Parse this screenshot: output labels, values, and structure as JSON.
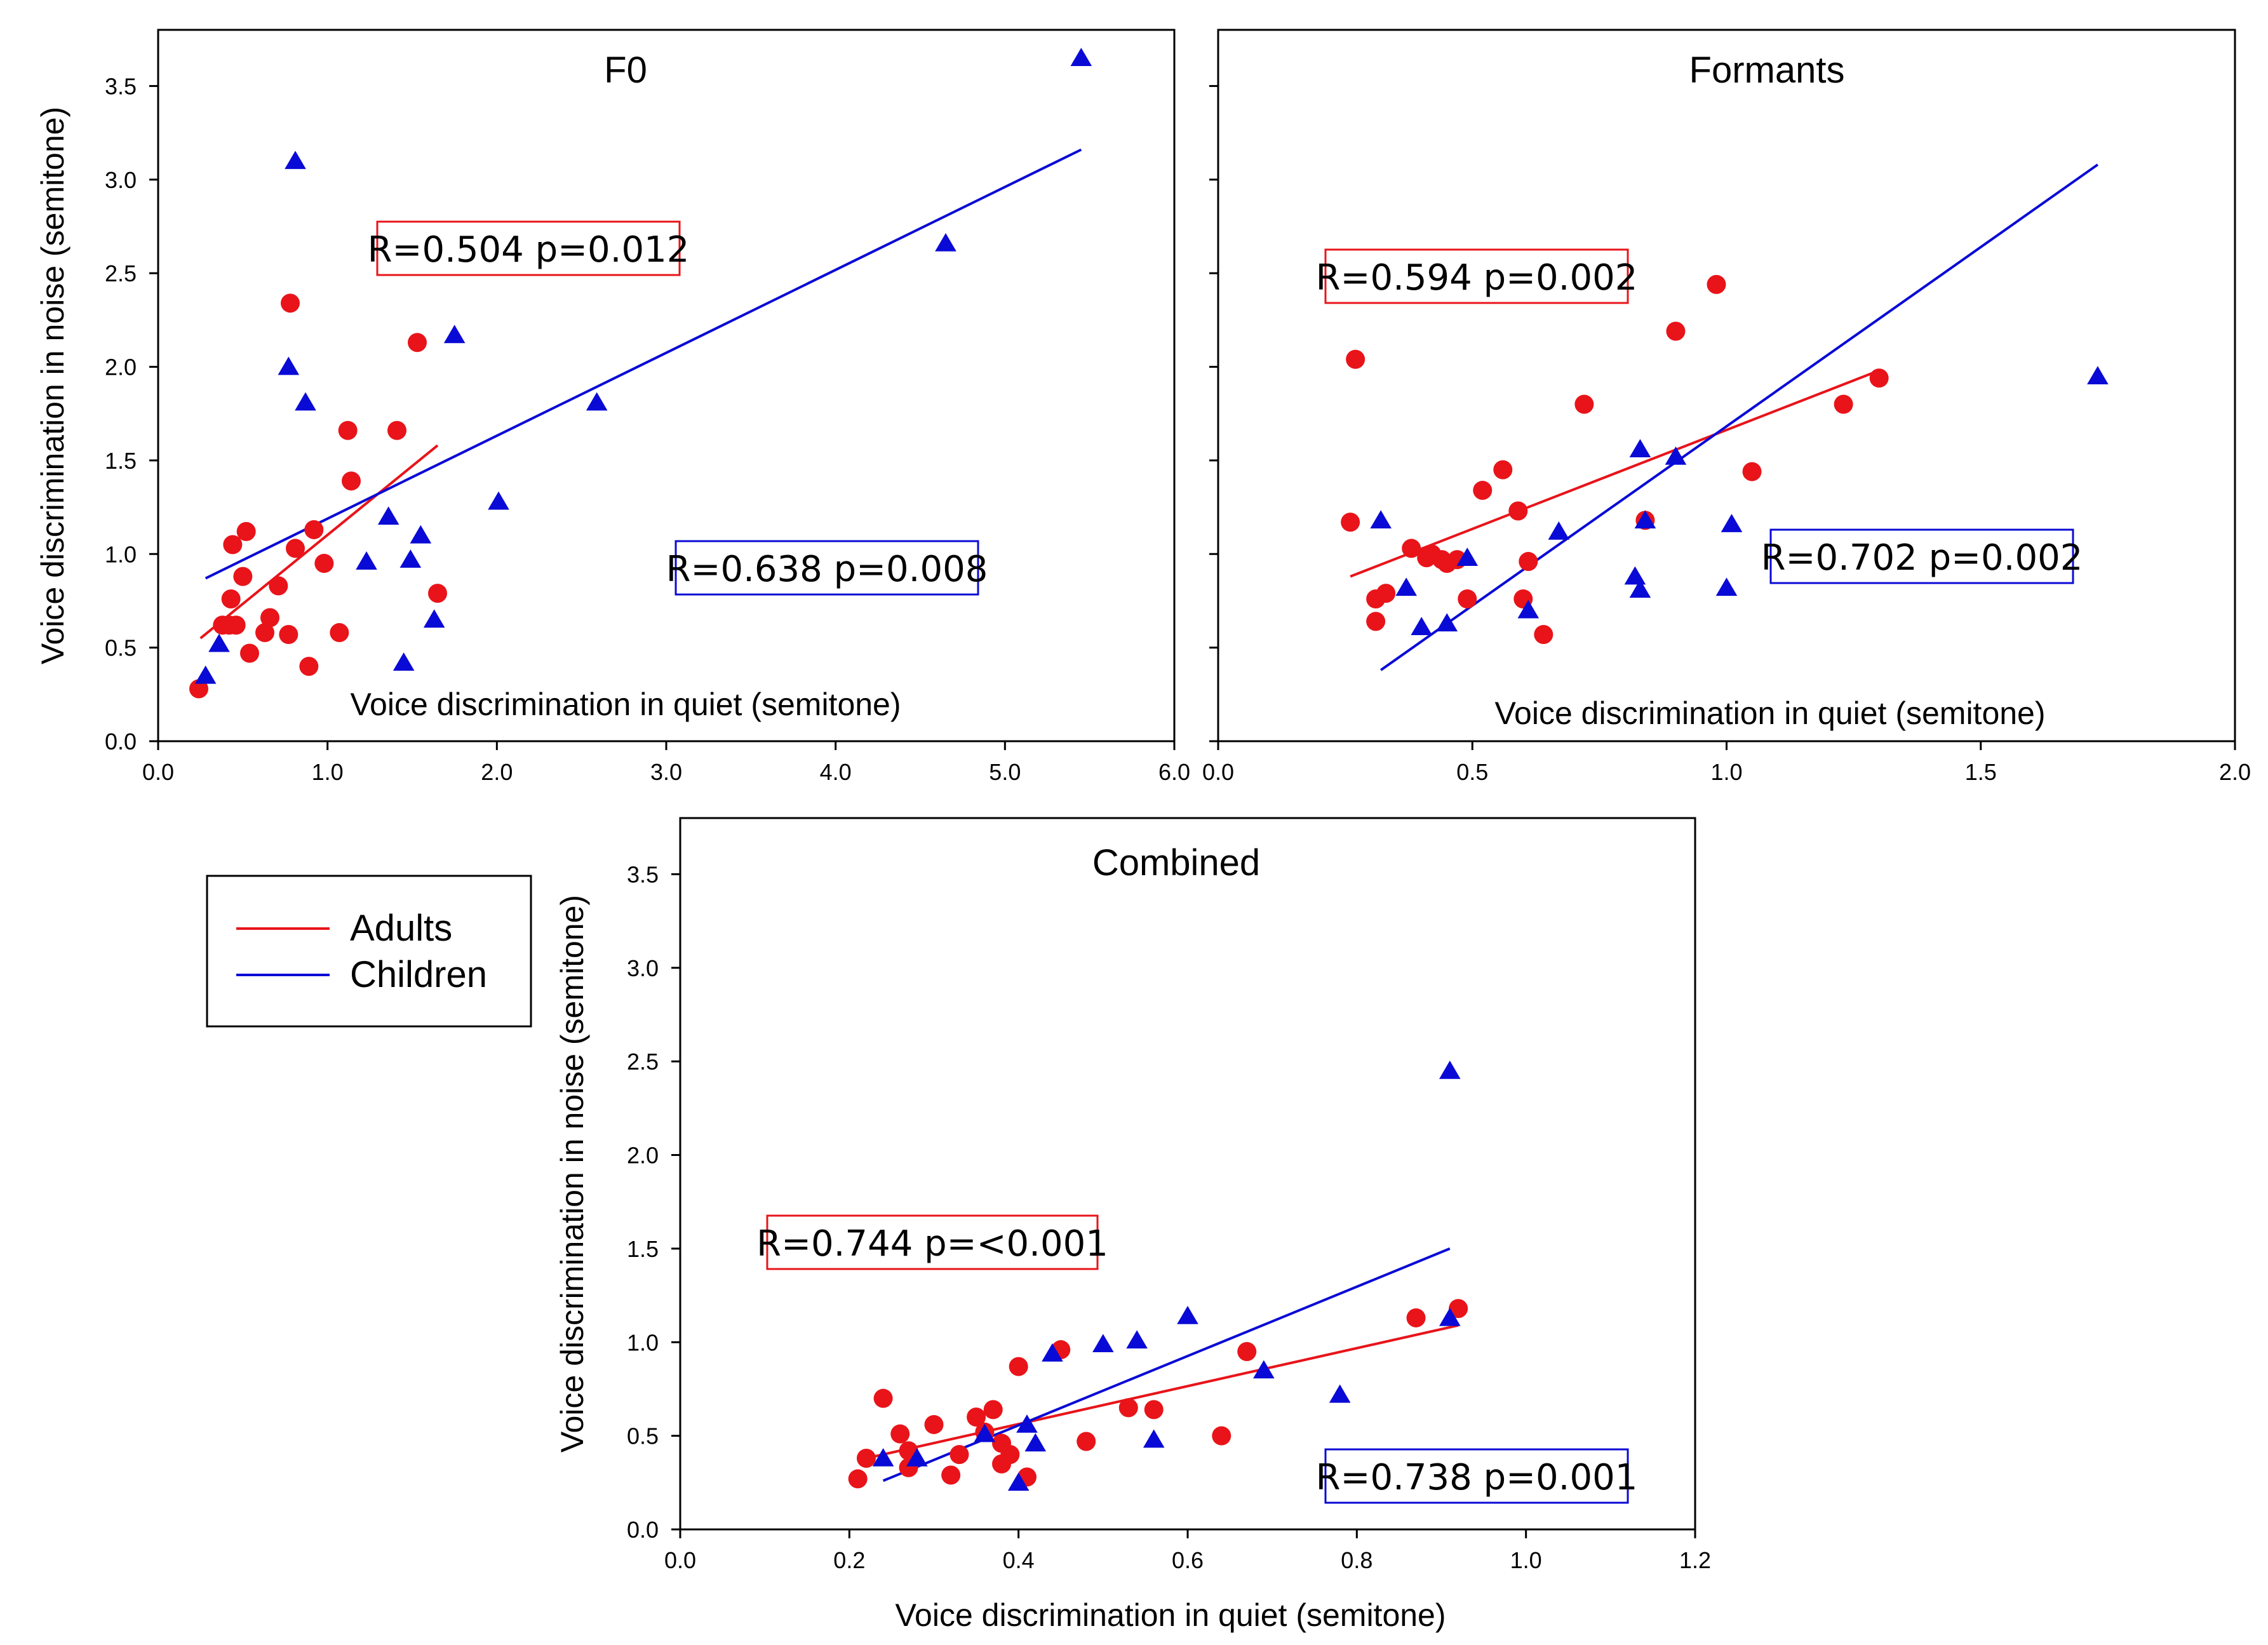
{
  "colors": {
    "adults": "#e8141a",
    "children": "#0a0ad6",
    "frame": "#000000"
  },
  "legend": {
    "adults_label": "Adults",
    "children_label": "Children"
  },
  "chart_data": [
    {
      "type": "scatter",
      "title": "F0",
      "xlabel": "Voice discrimination in quiet (semitone)",
      "ylabel": "Voice discrimination in noise (semitone)",
      "xlim": [
        0,
        6
      ],
      "ylim": [
        0,
        3.8
      ],
      "xticks": [
        "0.0",
        "1.0",
        "2.0",
        "3.0",
        "4.0",
        "5.0",
        "6.0"
      ],
      "yticks": [
        "0.0",
        "0.5",
        "1.0",
        "1.5",
        "2.0",
        "2.5",
        "3.0",
        "3.5"
      ],
      "stats": {
        "adults": "R=0.504 p=0.012",
        "children": "R=0.638 p=0.008"
      },
      "series": [
        {
          "name": "Adults",
          "marker": "circle",
          "x": [
            0.24,
            0.38,
            0.42,
            0.43,
            0.44,
            0.46,
            0.5,
            0.52,
            0.54,
            0.63,
            0.66,
            0.71,
            0.77,
            0.78,
            0.81,
            0.89,
            0.92,
            0.98,
            1.07,
            1.12,
            1.14,
            1.41,
            1.53,
            1.65
          ],
          "y": [
            0.28,
            0.62,
            0.62,
            0.76,
            1.05,
            0.62,
            0.88,
            1.12,
            0.47,
            0.58,
            0.66,
            0.83,
            0.57,
            2.34,
            1.03,
            0.4,
            1.13,
            0.95,
            0.58,
            1.66,
            1.39,
            1.66,
            2.13,
            0.79
          ],
          "fit_x": [
            0.25,
            1.65
          ],
          "fit_y": [
            0.55,
            1.58
          ]
        },
        {
          "name": "Children",
          "marker": "triangle",
          "x": [
            0.28,
            0.36,
            0.77,
            0.81,
            0.87,
            1.23,
            1.36,
            1.45,
            1.49,
            1.55,
            1.63,
            1.75,
            2.01,
            2.59,
            4.65,
            5.45
          ],
          "y": [
            0.35,
            0.52,
            2.0,
            3.1,
            1.81,
            0.96,
            1.2,
            0.42,
            0.97,
            1.1,
            0.65,
            2.17,
            1.28,
            1.81,
            2.66,
            3.65
          ],
          "fit_x": [
            0.28,
            5.45
          ],
          "fit_y": [
            0.87,
            3.16
          ]
        }
      ]
    },
    {
      "type": "scatter",
      "title": "Formants",
      "xlabel": "Voice discrimination in quiet (semitone)",
      "ylabel": "",
      "xlim": [
        0,
        2
      ],
      "ylim": [
        0,
        3.8
      ],
      "xticks": [
        "0.0",
        "0.5",
        "1.0",
        "1.5",
        "2.0"
      ],
      "yticks": [],
      "stats": {
        "adults": "R=0.594 p=0.002",
        "children": "R=0.702 p=0.002"
      },
      "series": [
        {
          "name": "Adults",
          "marker": "circle",
          "x": [
            0.26,
            0.27,
            0.31,
            0.31,
            0.33,
            0.38,
            0.41,
            0.42,
            0.44,
            0.45,
            0.47,
            0.49,
            0.52,
            0.56,
            0.59,
            0.6,
            0.61,
            0.64,
            0.72,
            0.84,
            0.9,
            0.98,
            1.05,
            1.23,
            1.3
          ],
          "y": [
            1.17,
            2.04,
            0.76,
            0.64,
            0.79,
            1.03,
            0.98,
            1.0,
            0.97,
            0.95,
            0.97,
            0.76,
            1.34,
            1.45,
            1.23,
            0.76,
            0.96,
            0.57,
            1.8,
            1.18,
            2.19,
            2.44,
            1.44,
            1.8,
            1.94
          ],
          "fit_x": [
            0.26,
            1.3
          ],
          "fit_y": [
            0.88,
            1.98
          ]
        },
        {
          "name": "Children",
          "marker": "triangle",
          "x": [
            0.32,
            0.37,
            0.4,
            0.45,
            0.49,
            0.61,
            0.67,
            0.82,
            0.83,
            0.83,
            0.84,
            0.9,
            1.0,
            1.01,
            1.73
          ],
          "y": [
            1.18,
            0.82,
            0.61,
            0.63,
            0.98,
            0.7,
            1.12,
            0.88,
            0.81,
            1.56,
            1.18,
            1.52,
            0.82,
            1.16,
            1.95
          ],
          "fit_x": [
            0.32,
            1.73
          ],
          "fit_y": [
            0.38,
            3.08
          ]
        }
      ]
    },
    {
      "type": "scatter",
      "title": "Combined",
      "xlabel": "Voice discrimination in quiet (semitone)",
      "ylabel": "Voice discrimination in noise (semitone)",
      "xlim": [
        0,
        1.2
      ],
      "ylim": [
        0,
        3.8
      ],
      "xticks": [
        "0.0",
        "0.2",
        "0.4",
        "0.6",
        "0.8",
        "1.0",
        "1.2"
      ],
      "yticks": [
        "0.0",
        "0.5",
        "1.0",
        "1.5",
        "2.0",
        "2.5",
        "3.0",
        "3.5"
      ],
      "stats": {
        "adults": "R=0.744 p=<0.001",
        "children": "R=0.738 p=0.001"
      },
      "series": [
        {
          "name": "Adults",
          "marker": "circle",
          "x": [
            0.21,
            0.22,
            0.24,
            0.26,
            0.27,
            0.27,
            0.3,
            0.32,
            0.33,
            0.35,
            0.36,
            0.37,
            0.38,
            0.38,
            0.39,
            0.4,
            0.41,
            0.45,
            0.48,
            0.53,
            0.56,
            0.64,
            0.67,
            0.87,
            0.92
          ],
          "y": [
            0.27,
            0.38,
            0.7,
            0.51,
            0.42,
            0.33,
            0.56,
            0.29,
            0.4,
            0.6,
            0.52,
            0.64,
            0.46,
            0.35,
            0.4,
            0.87,
            0.28,
            0.96,
            0.47,
            0.65,
            0.64,
            0.5,
            0.95,
            1.13,
            1.18
          ],
          "fit_x": [
            0.21,
            0.92
          ],
          "fit_y": [
            0.37,
            1.09
          ]
        },
        {
          "name": "Children",
          "marker": "triangle",
          "x": [
            0.24,
            0.28,
            0.36,
            0.4,
            0.41,
            0.42,
            0.44,
            0.5,
            0.54,
            0.56,
            0.6,
            0.69,
            0.78,
            0.91,
            0.91
          ],
          "y": [
            0.38,
            0.38,
            0.51,
            0.25,
            0.56,
            0.46,
            0.94,
            0.99,
            1.01,
            0.48,
            1.14,
            0.85,
            0.72,
            1.13,
            2.45
          ],
          "fit_x": [
            0.24,
            0.91
          ],
          "fit_y": [
            0.26,
            1.5
          ]
        }
      ]
    }
  ]
}
